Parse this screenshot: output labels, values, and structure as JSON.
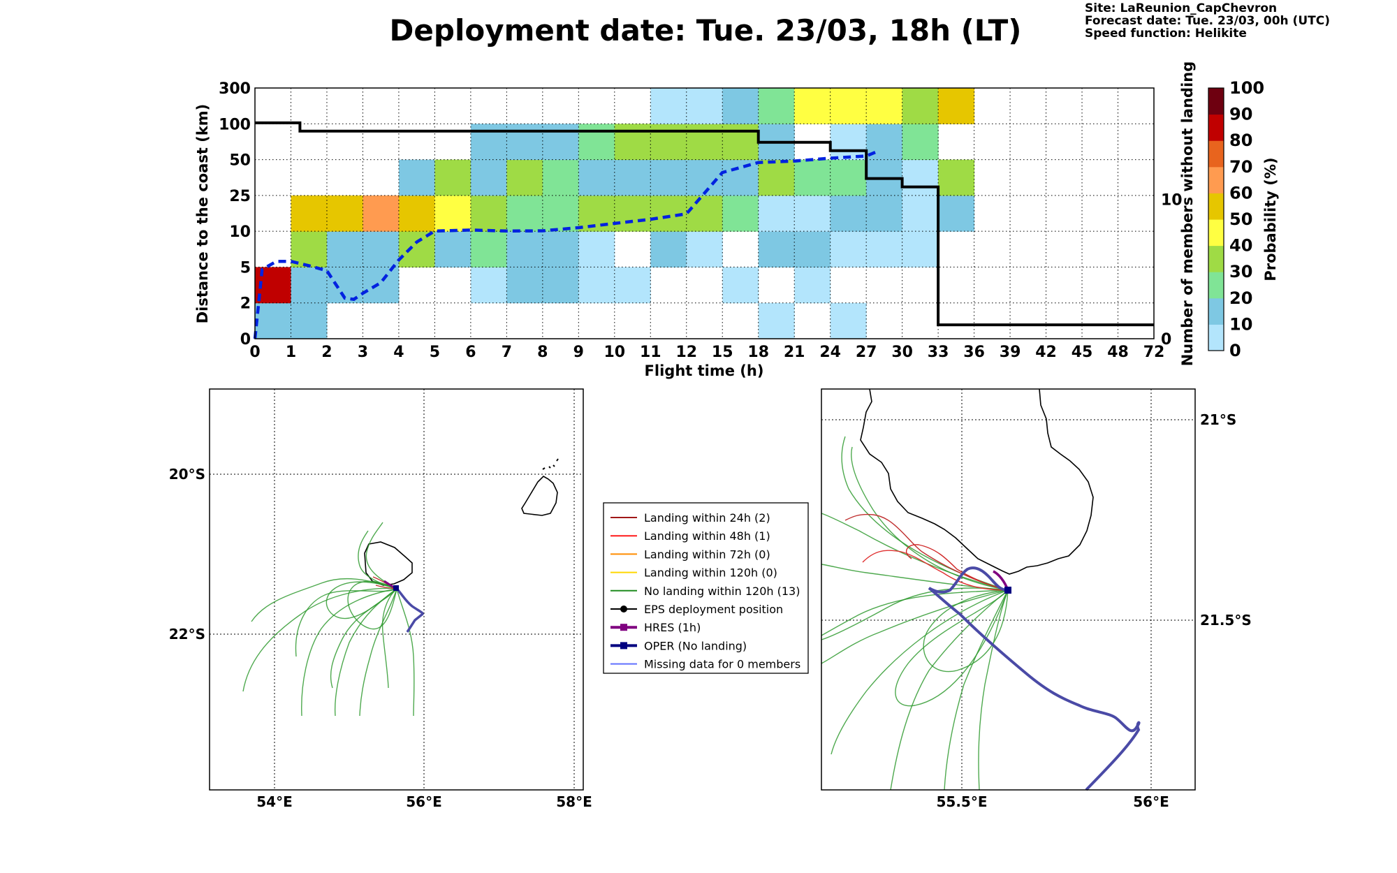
{
  "header": {
    "title": "Deployment date: Tue. 23/03, 18h (LT)",
    "info_lines": [
      "Site: LaReunion_CapChevron",
      "Forecast date: Tue. 23/03, 00h (UTC)",
      "Speed function: Helikite"
    ]
  },
  "colors": {
    "prob_scale": [
      "#b3e5fc",
      "#7ec8e3",
      "#80e496",
      "#9fdb45",
      "#ffff42",
      "#e6c600",
      "#ff9b50",
      "#e8641e",
      "#c00000",
      "#6e0010"
    ],
    "median_line": "#0022e0",
    "members_line": "#000000",
    "grid": "#000000",
    "landing_24h": "#a01818",
    "landing_48h": "#ff1a1a",
    "landing_72h": "#ff8c00",
    "landing_120h": "#ffd700",
    "no_landing": "#1e8c1e",
    "eps_deploy": "#000000",
    "hres": "#800080",
    "oper": "#000080",
    "missing": "#6070ff",
    "coast": "#000000",
    "oper_track": "#4a4aa6"
  },
  "chart_data": [
    {
      "type": "heatmap",
      "xlabel": "Flight time (h)",
      "ylabel": "Distance to the coast (km)",
      "y2label": "Number of members without landing",
      "x_ticks": [
        "0",
        "1",
        "2",
        "3",
        "4",
        "5",
        "6",
        "7",
        "8",
        "9",
        "10",
        "11",
        "12",
        "15",
        "18",
        "21",
        "24",
        "27",
        "30",
        "33",
        "36",
        "39",
        "42",
        "45",
        "48",
        "72"
      ],
      "y_ticks": [
        "0",
        "2",
        "5",
        "10",
        "25",
        "50",
        "100",
        "300"
      ],
      "y2_ticks": [
        "0",
        "10"
      ],
      "colorbar": {
        "label": "Probability (%)",
        "ticks": [
          "0",
          "10",
          "20",
          "30",
          "40",
          "50",
          "60",
          "70",
          "80",
          "90",
          "100"
        ]
      },
      "grid": true,
      "cells_bin_levels": [
        [
          1,
          1,
          -1,
          -1,
          -1,
          -1,
          -1,
          -1,
          -1,
          -1,
          -1,
          -1,
          -1,
          -1,
          0,
          -1,
          0,
          -1,
          -1,
          -1,
          -1,
          -1,
          -1,
          -1,
          -1
        ],
        [
          8,
          1,
          1,
          1,
          -1,
          -1,
          0,
          1,
          1,
          0,
          0,
          -1,
          -1,
          0,
          -1,
          0,
          -1,
          -1,
          -1,
          -1,
          -1,
          -1,
          -1,
          -1,
          -1
        ],
        [
          -1,
          3,
          1,
          1,
          3,
          1,
          2,
          1,
          1,
          0,
          -1,
          1,
          0,
          -1,
          1,
          1,
          0,
          0,
          0,
          -1,
          -1,
          -1,
          -1,
          -1,
          -1
        ],
        [
          -1,
          5,
          5,
          6,
          5,
          4,
          3,
          2,
          2,
          3,
          3,
          3,
          3,
          2,
          0,
          0,
          1,
          1,
          0,
          1,
          -1,
          -1,
          -1,
          -1,
          -1
        ],
        [
          -1,
          -1,
          -1,
          -1,
          1,
          3,
          1,
          3,
          2,
          1,
          1,
          1,
          1,
          1,
          3,
          2,
          2,
          1,
          0,
          3,
          -1,
          -1,
          -1,
          -1,
          -1
        ],
        [
          -1,
          -1,
          -1,
          -1,
          -1,
          -1,
          1,
          1,
          1,
          2,
          3,
          3,
          3,
          3,
          1,
          -1,
          0,
          1,
          2,
          -1,
          -1,
          -1,
          -1,
          -1,
          -1
        ],
        [
          -1,
          -1,
          -1,
          -1,
          -1,
          -1,
          -1,
          -1,
          -1,
          -1,
          -1,
          0,
          0,
          1,
          2,
          4,
          4,
          4,
          3,
          5,
          -1,
          -1,
          -1,
          -1,
          -1
        ]
      ],
      "members_without_landing": {
        "x_h": [
          0,
          1.25,
          1.25,
          18,
          18,
          24,
          24,
          27,
          27,
          30,
          30,
          33,
          33,
          72
        ],
        "y_count": [
          15.5,
          15.5,
          14.9,
          14.9,
          14.1,
          14.1,
          13.5,
          13.5,
          11.5,
          11.5,
          10.9,
          10.9,
          1,
          1
        ]
      },
      "median_distance_km": {
        "x_h": [
          0,
          0.2,
          0.6,
          1,
          1.5,
          2,
          2.5,
          2.75,
          3,
          3.5,
          4,
          4.5,
          5,
          5.5,
          6,
          7,
          8,
          9,
          10,
          11,
          12,
          15,
          18,
          21,
          24,
          27,
          28
        ],
        "y_km": [
          0,
          4.8,
          5.8,
          5.8,
          5.2,
          4.7,
          2.4,
          2.3,
          2.8,
          3.7,
          6,
          8.5,
          10.1,
          10.3,
          10.5,
          10.1,
          10.2,
          11.5,
          13.3,
          15,
          17.3,
          41,
          48,
          49,
          52,
          55,
          62
        ]
      }
    },
    {
      "type": "map",
      "x_ticks": [
        "54°E",
        "56°E",
        "58°E"
      ],
      "y_ticks": [
        "20°S",
        "22°S"
      ],
      "grid": true
    },
    {
      "type": "map",
      "x_ticks": [
        "55.5°E",
        "56°E"
      ],
      "y_ticks": [
        "21°S",
        "21.5°S"
      ],
      "grid": true
    }
  ],
  "legend": {
    "items": [
      {
        "label": "Landing within 24h (2)",
        "color_key": "landing_24h",
        "marker": "none"
      },
      {
        "label": "Landing within 48h (1)",
        "color_key": "landing_48h",
        "marker": "none"
      },
      {
        "label": "Landing within 72h (0)",
        "color_key": "landing_72h",
        "marker": "none"
      },
      {
        "label": "Landing within 120h (0)",
        "color_key": "landing_120h",
        "marker": "none"
      },
      {
        "label": "No landing within 120h (13)",
        "color_key": "no_landing",
        "marker": "none"
      },
      {
        "label": "EPS deployment position",
        "color_key": "eps_deploy",
        "marker": "circle"
      },
      {
        "label": "HRES (1h)",
        "color_key": "hres",
        "marker": "square"
      },
      {
        "label": "OPER (No landing)",
        "color_key": "oper",
        "marker": "square"
      },
      {
        "label": "Missing data for 0 members",
        "color_key": "missing",
        "marker": "none"
      }
    ]
  }
}
